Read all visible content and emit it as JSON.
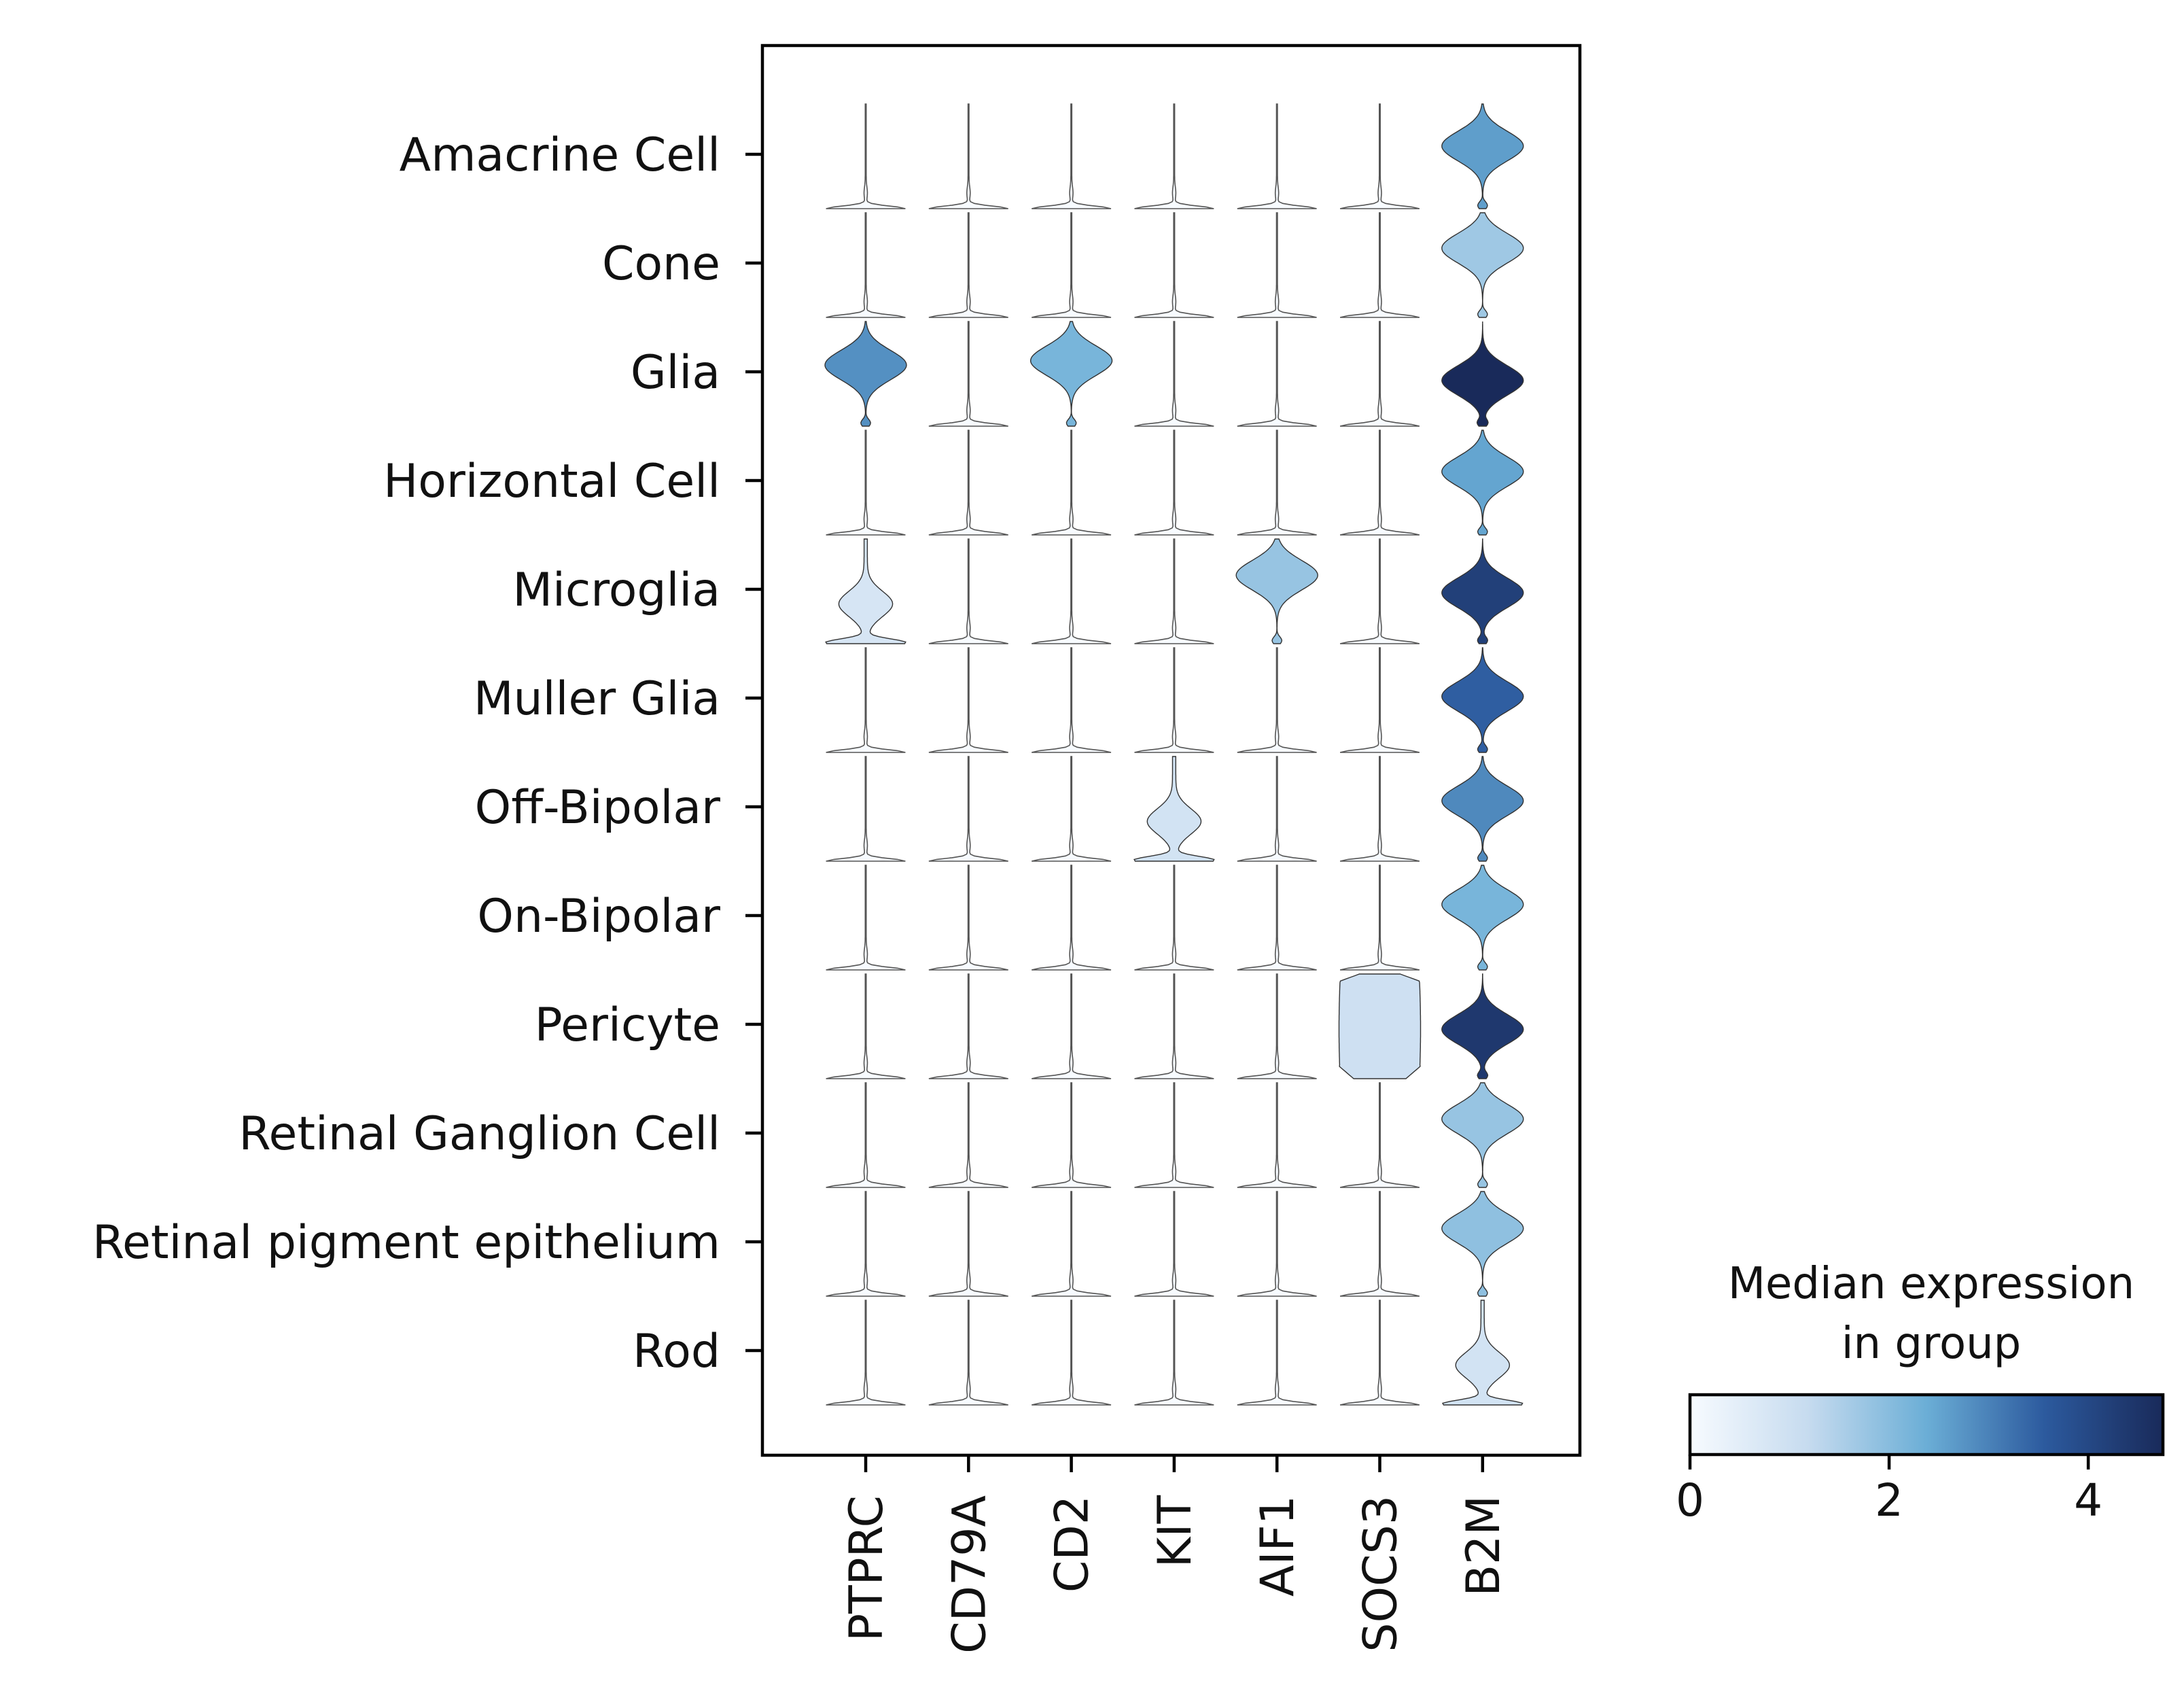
{
  "chart_data": {
    "type": "stacked-violin",
    "xlabel": "",
    "ylabel": "",
    "genes": [
      "PTPRC",
      "CD79A",
      "CD2",
      "KIT",
      "AIF1",
      "SOCS3",
      "B2M"
    ],
    "groups": [
      "Amacrine Cell",
      "Cone",
      "Glia",
      "Horizontal Cell",
      "Microglia",
      "Muller Glia",
      "Off-Bipolar",
      "On-Bipolar",
      "Pericyte",
      "Retinal Ganglion Cell",
      "Retinal pigment epithelium",
      "Rod"
    ],
    "median_expression": [
      [
        0,
        0,
        0,
        0,
        0,
        0,
        2.6
      ],
      [
        0,
        0,
        0,
        0,
        0,
        0,
        1.7
      ],
      [
        2.8,
        0,
        2.2,
        0,
        0,
        0,
        4.9
      ],
      [
        0,
        0,
        0,
        0,
        0,
        0,
        2.5
      ],
      [
        0.8,
        0,
        0,
        0,
        1.8,
        0,
        4.2
      ],
      [
        0,
        0,
        0,
        0,
        0,
        0,
        3.5
      ],
      [
        0,
        0,
        0,
        0.9,
        0,
        0,
        2.9
      ],
      [
        0,
        0,
        0,
        0,
        0,
        0,
        2.2
      ],
      [
        0,
        0,
        0,
        0,
        0,
        1.0,
        4.4
      ],
      [
        0,
        0,
        0,
        0,
        0,
        0,
        1.8
      ],
      [
        0,
        0,
        0,
        0,
        0,
        0,
        1.9
      ],
      [
        0,
        0,
        0,
        0,
        0,
        0,
        0.9
      ]
    ],
    "violin_shape": [
      [
        "spike",
        "spike",
        "spike",
        "spike",
        "spike",
        "spike",
        "full"
      ],
      [
        "spike",
        "spike",
        "spike",
        "spike",
        "spike",
        "spike",
        "full"
      ],
      [
        "full",
        "spike",
        "full",
        "spike",
        "spike",
        "spike",
        "full"
      ],
      [
        "spike",
        "spike",
        "spike",
        "spike",
        "spike",
        "spike",
        "full"
      ],
      [
        "low",
        "spike",
        "spike",
        "spike",
        "full",
        "spike",
        "full"
      ],
      [
        "spike",
        "spike",
        "spike",
        "spike",
        "spike",
        "spike",
        "full"
      ],
      [
        "spike",
        "spike",
        "spike",
        "low",
        "spike",
        "spike",
        "full"
      ],
      [
        "spike",
        "spike",
        "spike",
        "spike",
        "spike",
        "spike",
        "full"
      ],
      [
        "spike",
        "spike",
        "spike",
        "spike",
        "spike",
        "wide",
        "full"
      ],
      [
        "spike",
        "spike",
        "spike",
        "spike",
        "spike",
        "spike",
        "full"
      ],
      [
        "spike",
        "spike",
        "spike",
        "spike",
        "spike",
        "spike",
        "full"
      ],
      [
        "spike",
        "spike",
        "spike",
        "spike",
        "spike",
        "spike",
        "low"
      ]
    ],
    "colorbar": {
      "title": "Median expression\nin group",
      "ticks": [
        "0",
        "2",
        "4"
      ],
      "range": [
        0,
        4.75
      ],
      "colors": [
        "#f7fbff",
        "#c6dbef",
        "#6baed6",
        "#2c5a9e",
        "#192a5a"
      ]
    },
    "legend_position": "bottom-right",
    "grid": false
  }
}
